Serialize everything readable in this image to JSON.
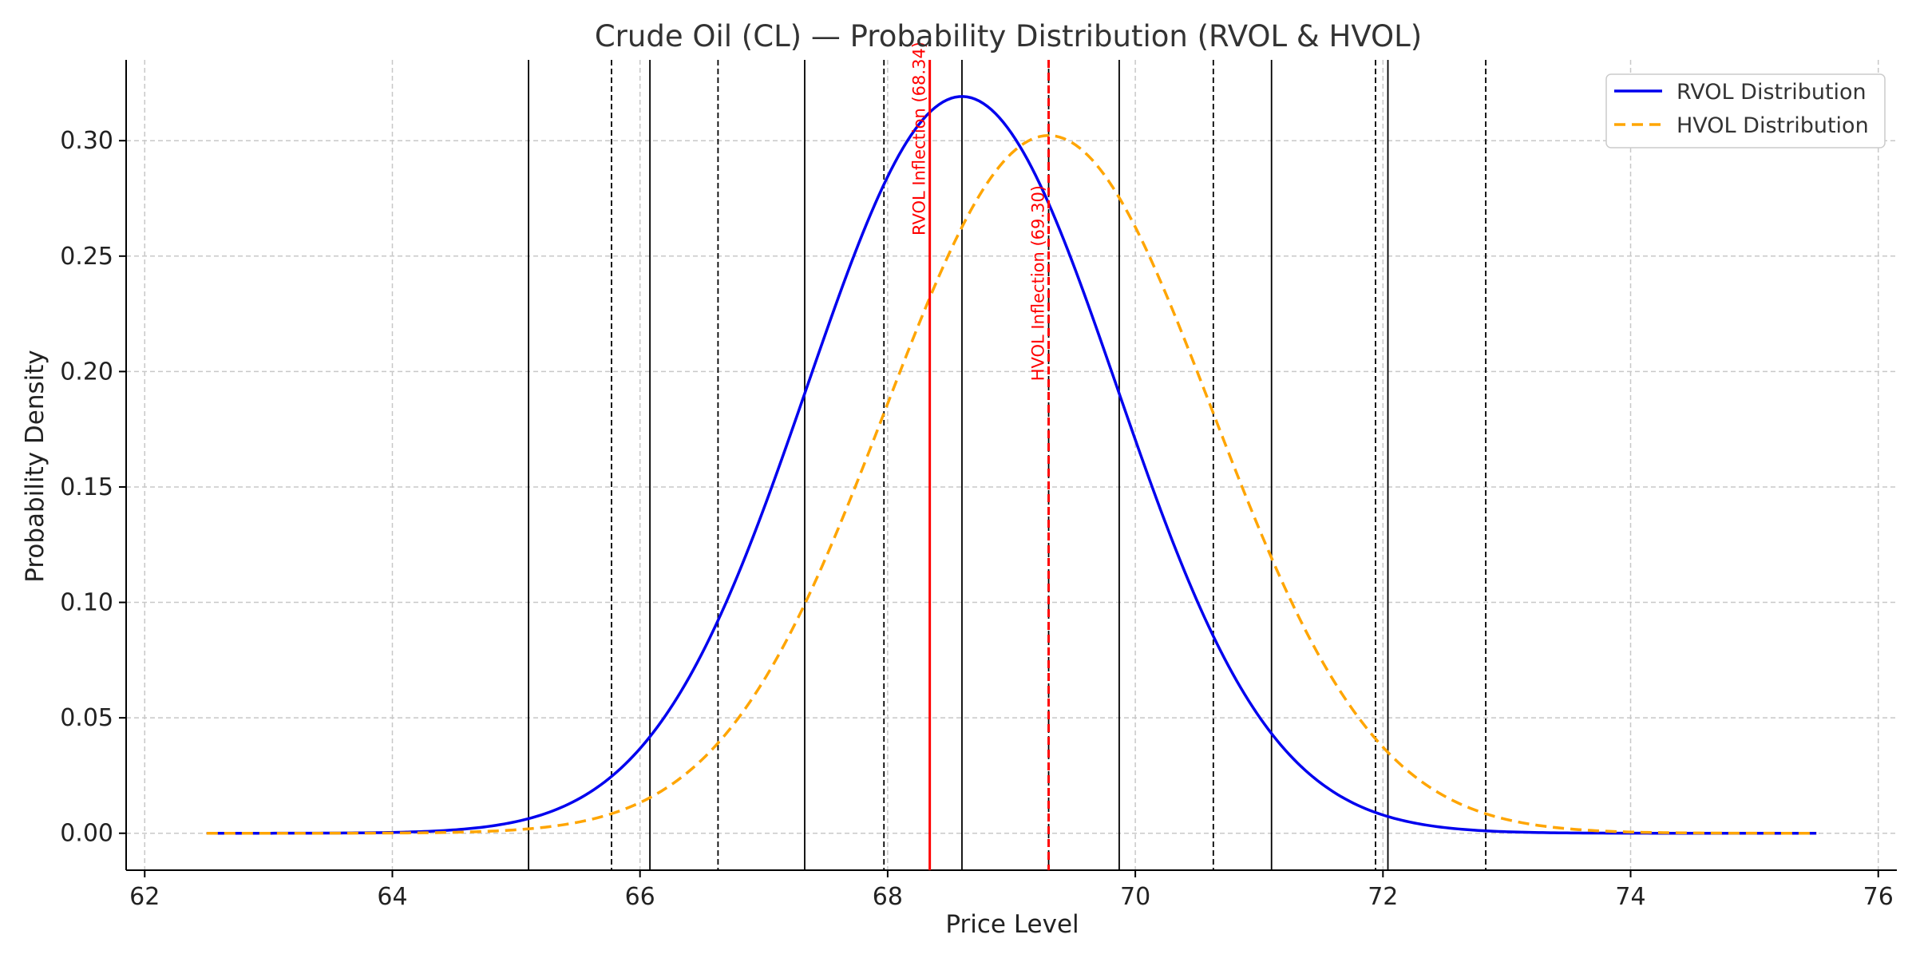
{
  "chart_data": {
    "type": "line",
    "title": "Crude Oil (CL) — Probability Distribution (RVOL & HVOL)",
    "xlabel": "Price Level",
    "ylabel": "Probability Density",
    "xlim": [
      61.85,
      76.15
    ],
    "ylim": [
      -0.016,
      0.335
    ],
    "grid": true,
    "legend_position": "top-right",
    "x_ticks": [
      62,
      64,
      66,
      68,
      70,
      72,
      74,
      76
    ],
    "x_tick_labels": [
      "62",
      "64",
      "66",
      "68",
      "70",
      "72",
      "74",
      "76"
    ],
    "y_ticks": [
      0.0,
      0.05,
      0.1,
      0.15,
      0.2,
      0.25,
      0.3
    ],
    "y_tick_labels": [
      "0.00",
      "0.05",
      "0.10",
      "0.15",
      "0.20",
      "0.25",
      "0.30"
    ],
    "series": [
      {
        "name": "RVOL Distribution",
        "distribution": "normal",
        "mean": 68.6,
        "std": 1.25,
        "x_range": [
          62.5,
          75.5
        ],
        "color": "#0000ee",
        "dash": "solid"
      },
      {
        "name": "HVOL Distribution",
        "distribution": "normal",
        "mean": 69.3,
        "std": 1.32,
        "x_range": [
          62.5,
          75.5
        ],
        "color": "#ffa500",
        "dash": "dashed"
      }
    ],
    "vlines_solid": [
      65.1,
      66.08,
      67.33,
      68.6,
      69.87,
      71.1,
      72.04
    ],
    "vlines_dashed": [
      65.77,
      66.63,
      67.97,
      69.3,
      70.63,
      71.94,
      72.83
    ],
    "annotations": [
      {
        "text": "RVOL Inflection (68.34)",
        "x": 68.34,
        "color": "#ff0000",
        "style": "solid"
      },
      {
        "text": "HVOL Inflection (69.30)",
        "x": 69.3,
        "color": "#ff0000",
        "style": "dashed"
      }
    ]
  }
}
